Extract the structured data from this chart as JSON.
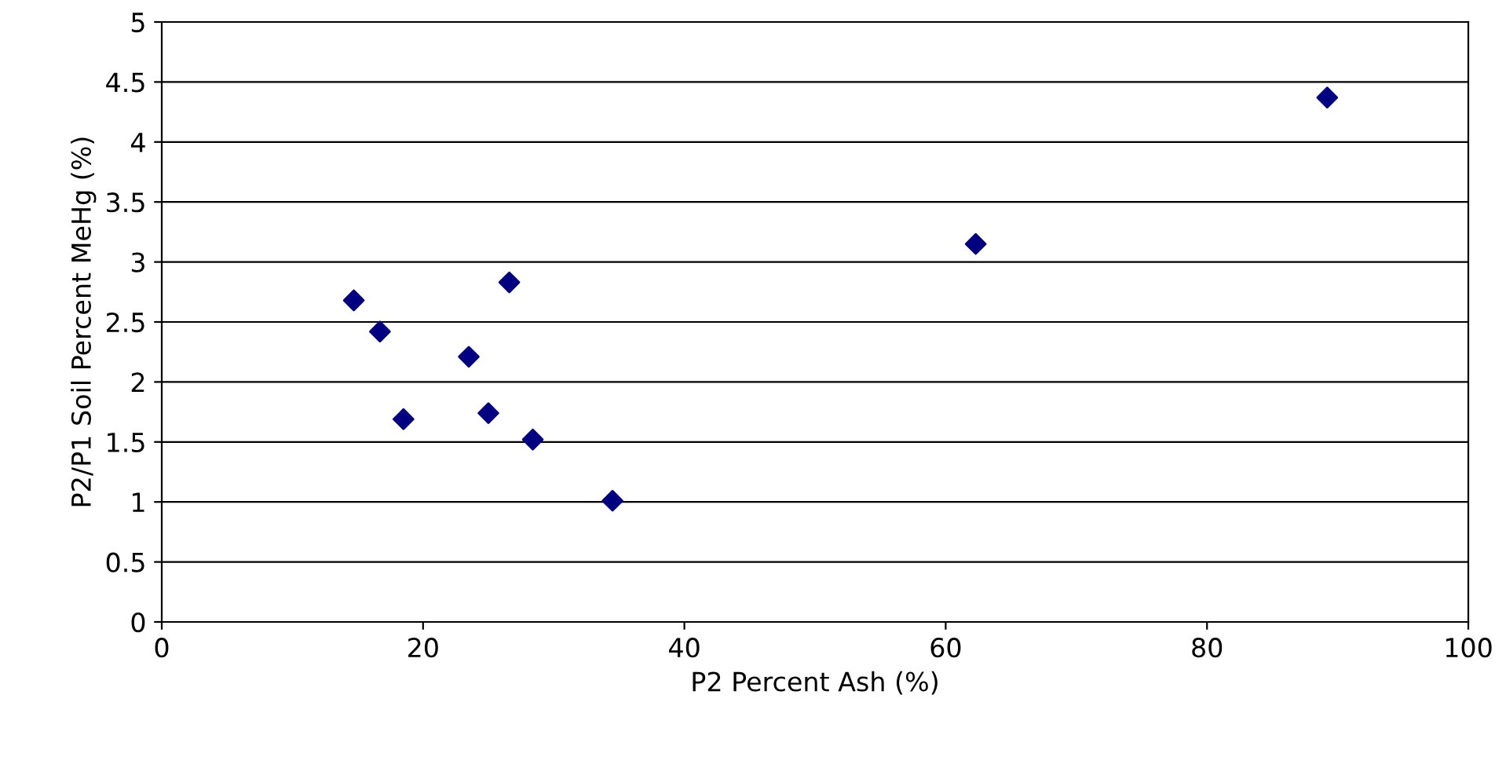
{
  "chart_data": {
    "type": "scatter",
    "xlabel": "P2 Percent Ash (%)",
    "ylabel": "P2/P1 Soil Percent MeHg (%)",
    "x": [
      14.7,
      16.7,
      18.5,
      23.5,
      25.0,
      26.6,
      28.4,
      34.5,
      62.3,
      89.2
    ],
    "series": [
      {
        "color": "#000080",
        "values": [
          2.68,
          2.42,
          1.69,
          2.21,
          1.74,
          2.83,
          1.52,
          1.01,
          3.15,
          4.37
        ]
      }
    ],
    "xlim": [
      0,
      100
    ],
    "xticks": [
      0,
      20,
      40,
      60,
      80,
      100
    ],
    "ylim": [
      0,
      5
    ],
    "yticks": [
      0,
      0.5,
      1,
      1.5,
      2,
      2.5,
      3,
      3.5,
      4,
      4.5,
      5
    ],
    "grid": "y",
    "marker": "diamond",
    "legend": false
  }
}
